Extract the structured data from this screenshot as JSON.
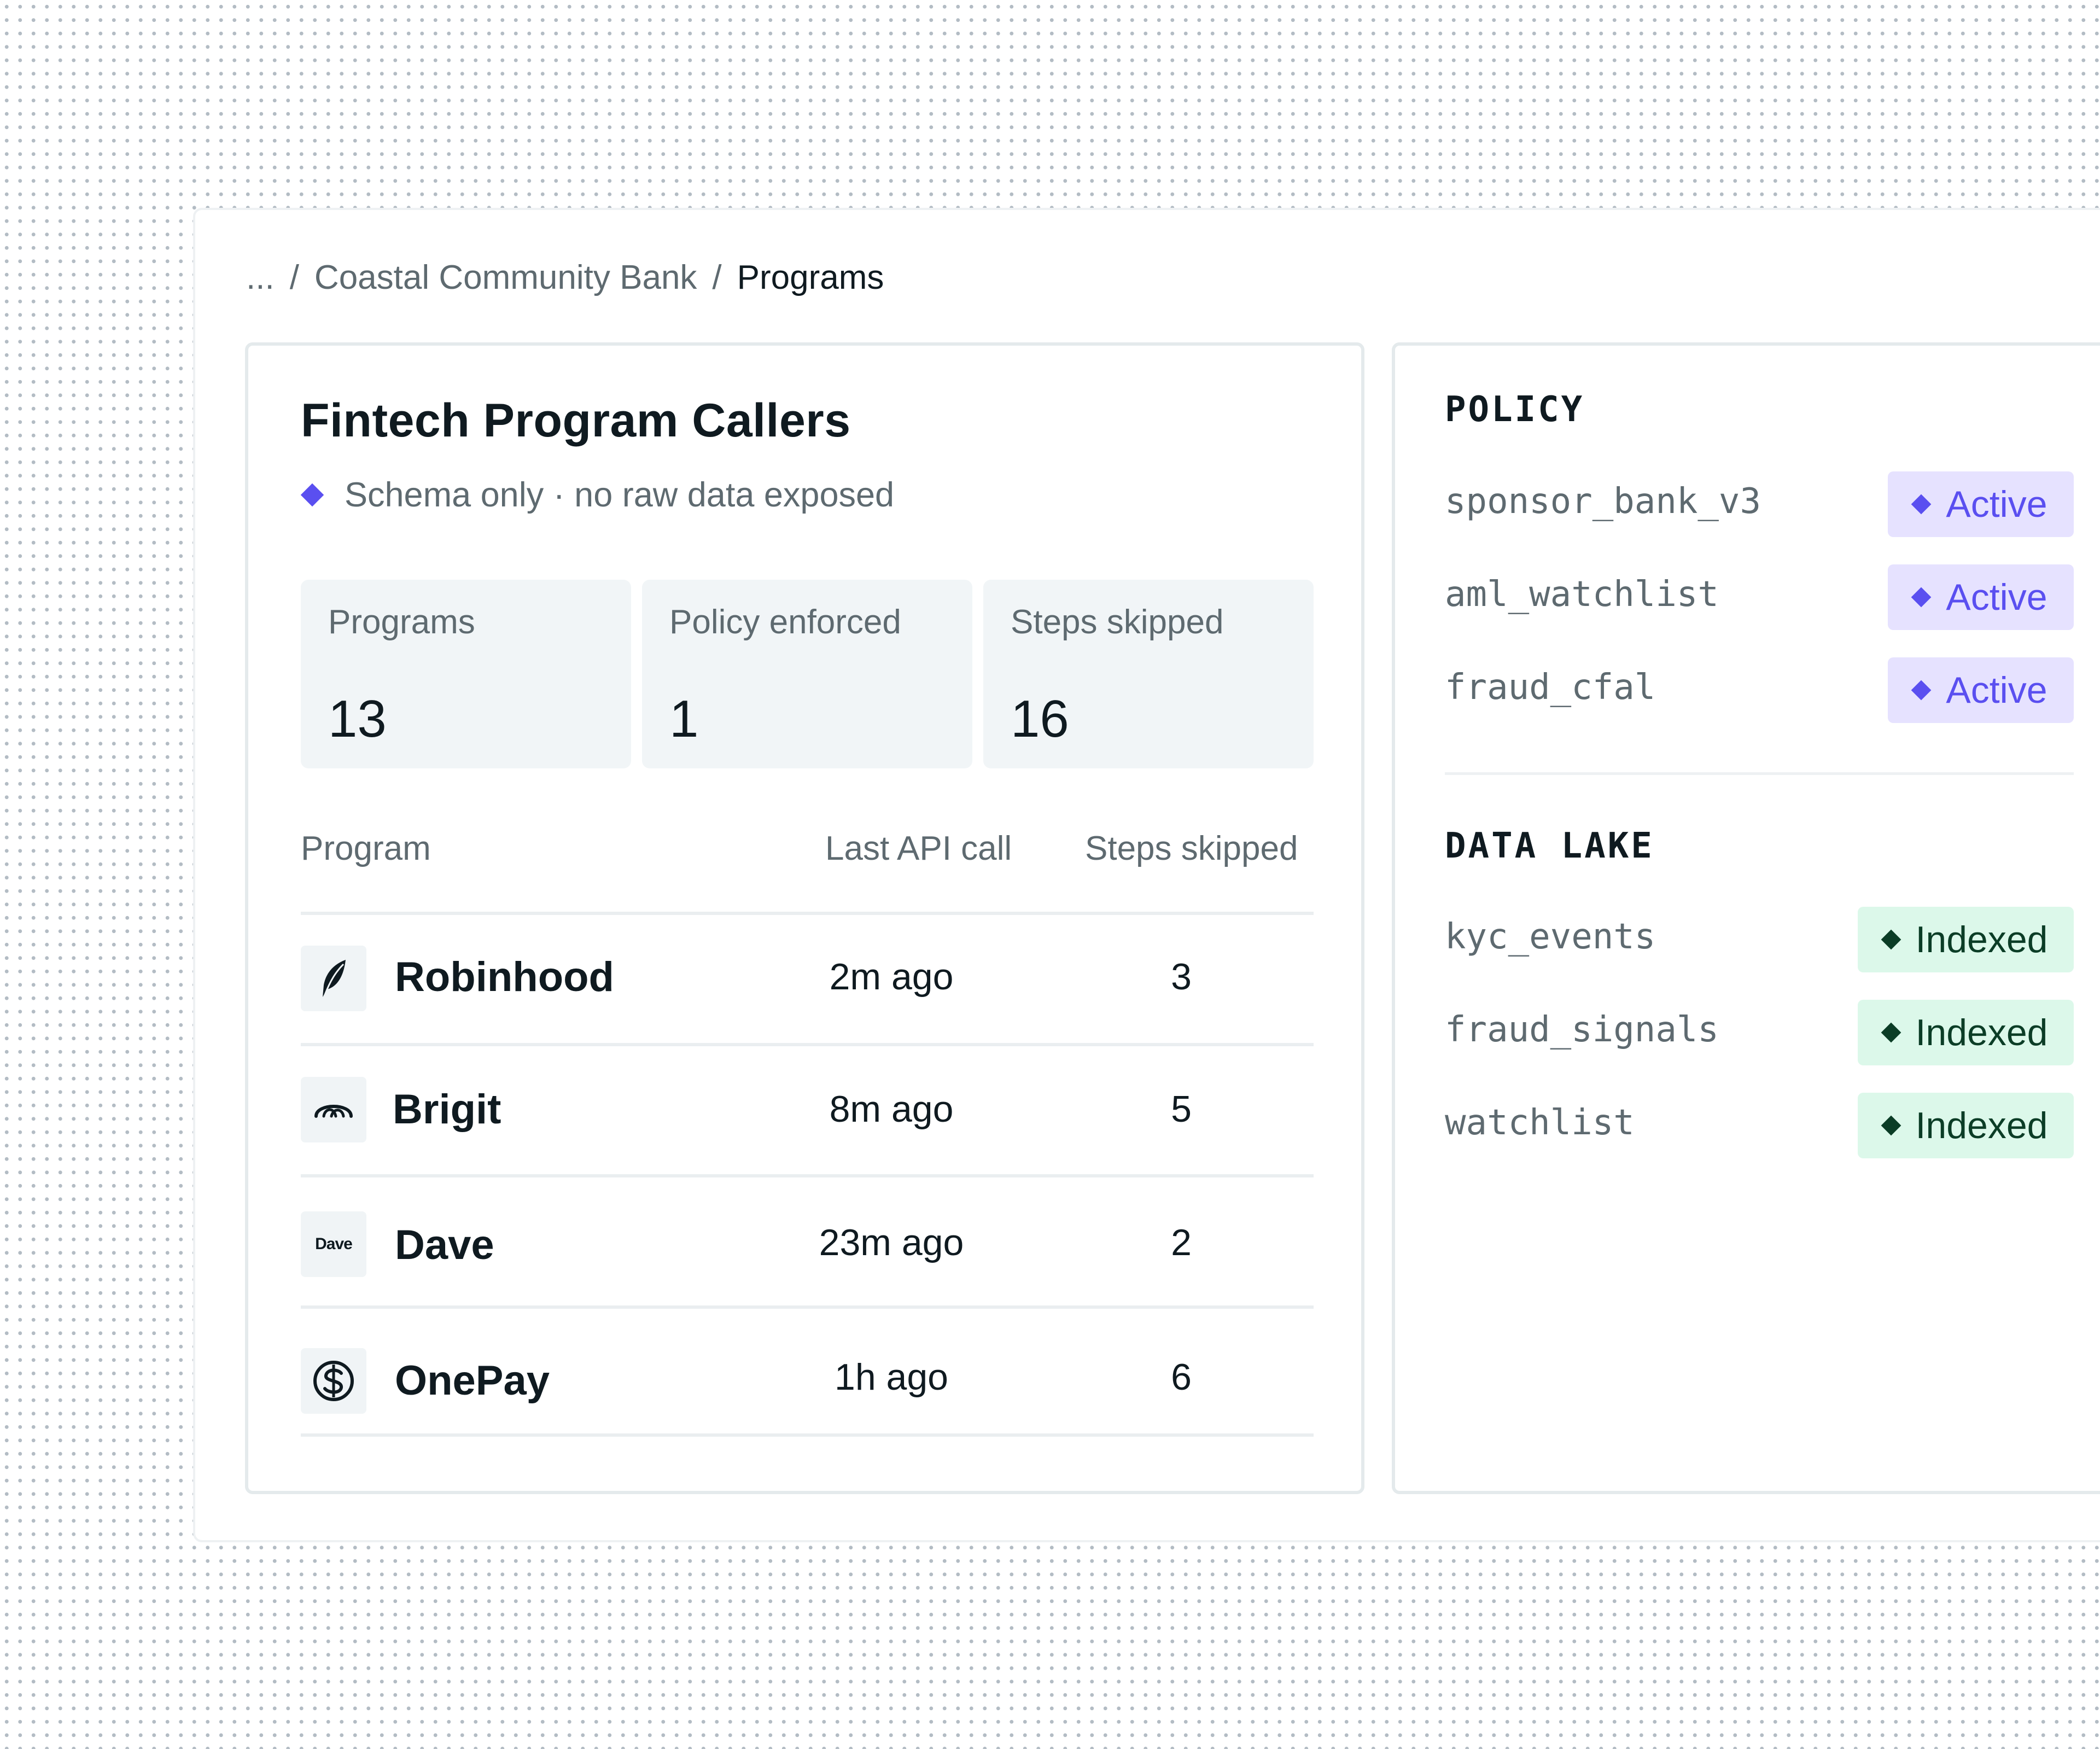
{
  "breadcrumb": {
    "ellipsis": "...",
    "separator": "/",
    "bank": "Coastal Community Bank",
    "current": "Programs"
  },
  "main": {
    "title": "Fintech Program Callers",
    "subtitle": "Schema only · no raw data exposed",
    "accent_color": "#5a4ff0",
    "stats": [
      {
        "label": "Programs",
        "value": "13"
      },
      {
        "label": "Policy enforced",
        "value": "1"
      },
      {
        "label": "Steps skipped",
        "value": "16"
      }
    ],
    "table": {
      "headers": {
        "program": "Program",
        "last_call": "Last API call",
        "steps": "Steps skipped"
      },
      "rows": [
        {
          "name": "Robinhood",
          "icon": "feather-icon",
          "last_call": "2m ago",
          "steps": "3"
        },
        {
          "name": "Brigit",
          "icon": "brigit-logo-icon",
          "last_call": "8m ago",
          "steps": "5"
        },
        {
          "name": "Dave",
          "icon": "dave-logo-icon",
          "logo_text": "Dave",
          "last_call": "23m ago",
          "steps": "2"
        },
        {
          "name": "OnePay",
          "icon": "onepay-logo-icon",
          "last_call": "1h ago",
          "steps": "6"
        }
      ]
    }
  },
  "policy": {
    "title": "POLICY",
    "items": [
      {
        "name": "sponsor_bank_v3",
        "status": "Active"
      },
      {
        "name": "aml_watchlist",
        "status": "Active"
      },
      {
        "name": "fraud_cfal",
        "status": "Active"
      }
    ],
    "status_color": "#5a4ff0"
  },
  "data_lake": {
    "title": "DATA LAKE",
    "items": [
      {
        "name": "kyc_events",
        "status": "Indexed"
      },
      {
        "name": "fraud_signals",
        "status": "Indexed"
      },
      {
        "name": "watchlist",
        "status": "Indexed"
      }
    ],
    "status_color": "#0b3d26"
  }
}
